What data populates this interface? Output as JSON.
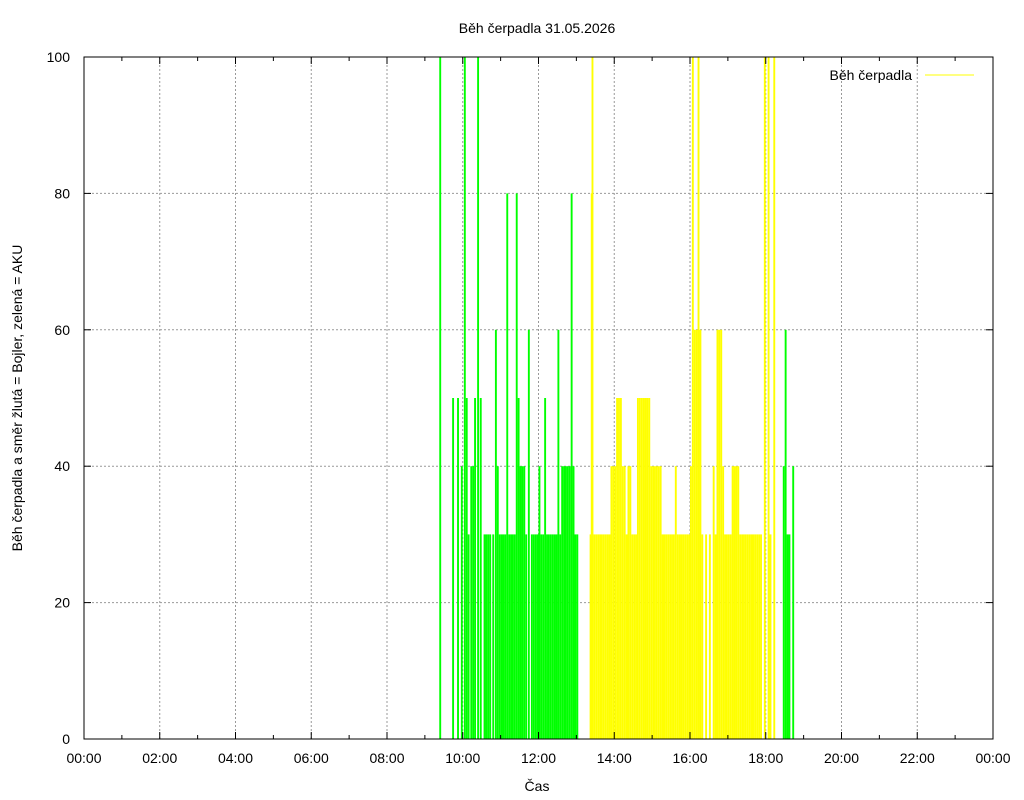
{
  "chart_data": {
    "type": "bar",
    "title": "Běh čerpadla 31.05.2026",
    "xlabel": "Čas",
    "ylabel": "Běh čerpadla a směr žlutá = Bojler, zelená = AKU",
    "xlim_hours": [
      0,
      24
    ],
    "ylim": [
      0,
      100
    ],
    "grid": true,
    "legend_position": "top-right",
    "x_tick_labels": [
      "00:00",
      "02:00",
      "04:00",
      "06:00",
      "08:00",
      "10:00",
      "12:00",
      "14:00",
      "16:00",
      "18:00",
      "20:00",
      "22:00",
      "00:00"
    ],
    "y_tick_labels": [
      "0",
      "20",
      "40",
      "60",
      "80",
      "100"
    ],
    "colors": {
      "green": "#00ff00",
      "yellow": "#ffff00"
    },
    "series": [
      {
        "name": "Běh čerpadla",
        "color": "#ffff00",
        "legend_line_color": "#ffff00"
      }
    ],
    "bars_green": [
      [
        9.38,
        100
      ],
      [
        9.72,
        50
      ],
      [
        9.85,
        50
      ],
      [
        9.95,
        40
      ],
      [
        10.03,
        100
      ],
      [
        10.08,
        50
      ],
      [
        10.13,
        30
      ],
      [
        10.2,
        40
      ],
      [
        10.25,
        40
      ],
      [
        10.3,
        50
      ],
      [
        10.38,
        100
      ],
      [
        10.45,
        50
      ],
      [
        10.55,
        30
      ],
      [
        10.6,
        30
      ],
      [
        10.65,
        30
      ],
      [
        10.7,
        30
      ],
      [
        10.78,
        30
      ],
      [
        10.85,
        60
      ],
      [
        10.9,
        40
      ],
      [
        10.95,
        30
      ],
      [
        11.0,
        30
      ],
      [
        11.05,
        30
      ],
      [
        11.1,
        30
      ],
      [
        11.15,
        80
      ],
      [
        11.2,
        30
      ],
      [
        11.25,
        30
      ],
      [
        11.3,
        30
      ],
      [
        11.35,
        30
      ],
      [
        11.4,
        80
      ],
      [
        11.45,
        50
      ],
      [
        11.5,
        40
      ],
      [
        11.55,
        40
      ],
      [
        11.6,
        40
      ],
      [
        11.65,
        30
      ],
      [
        11.72,
        60
      ],
      [
        11.8,
        30
      ],
      [
        11.85,
        30
      ],
      [
        11.9,
        30
      ],
      [
        11.95,
        30
      ],
      [
        12.0,
        40
      ],
      [
        12.05,
        30
      ],
      [
        12.1,
        30
      ],
      [
        12.15,
        50
      ],
      [
        12.2,
        30
      ],
      [
        12.25,
        30
      ],
      [
        12.3,
        30
      ],
      [
        12.35,
        30
      ],
      [
        12.4,
        30
      ],
      [
        12.45,
        30
      ],
      [
        12.5,
        60
      ],
      [
        12.55,
        30
      ],
      [
        12.6,
        40
      ],
      [
        12.65,
        40
      ],
      [
        12.7,
        40
      ],
      [
        12.75,
        40
      ],
      [
        12.8,
        40
      ],
      [
        12.85,
        80
      ],
      [
        12.9,
        40
      ],
      [
        12.95,
        30
      ],
      [
        13.0,
        30
      ],
      [
        18.45,
        40
      ],
      [
        18.5,
        60
      ],
      [
        18.55,
        30
      ],
      [
        18.6,
        30
      ],
      [
        18.7,
        40
      ]
    ],
    "bars_yellow": [
      [
        13.35,
        30
      ],
      [
        13.38,
        80
      ],
      [
        13.4,
        100
      ],
      [
        13.45,
        30
      ],
      [
        13.5,
        30
      ],
      [
        13.55,
        30
      ],
      [
        13.6,
        30
      ],
      [
        13.65,
        30
      ],
      [
        13.7,
        30
      ],
      [
        13.75,
        30
      ],
      [
        13.8,
        30
      ],
      [
        13.85,
        30
      ],
      [
        13.9,
        40
      ],
      [
        13.95,
        40
      ],
      [
        14.0,
        40
      ],
      [
        14.05,
        50
      ],
      [
        14.1,
        50
      ],
      [
        14.15,
        50
      ],
      [
        14.2,
        40
      ],
      [
        14.25,
        40
      ],
      [
        14.3,
        30
      ],
      [
        14.35,
        40
      ],
      [
        14.4,
        40
      ],
      [
        14.45,
        30
      ],
      [
        14.5,
        30
      ],
      [
        14.55,
        30
      ],
      [
        14.6,
        50
      ],
      [
        14.65,
        50
      ],
      [
        14.7,
        50
      ],
      [
        14.75,
        50
      ],
      [
        14.8,
        50
      ],
      [
        14.85,
        50
      ],
      [
        14.9,
        50
      ],
      [
        14.95,
        40
      ],
      [
        15.0,
        40
      ],
      [
        15.05,
        40
      ],
      [
        15.1,
        40
      ],
      [
        15.15,
        40
      ],
      [
        15.2,
        40
      ],
      [
        15.25,
        30
      ],
      [
        15.3,
        30
      ],
      [
        15.35,
        30
      ],
      [
        15.4,
        30
      ],
      [
        15.45,
        30
      ],
      [
        15.5,
        30
      ],
      [
        15.55,
        30
      ],
      [
        15.6,
        40
      ],
      [
        15.65,
        30
      ],
      [
        15.7,
        30
      ],
      [
        15.75,
        30
      ],
      [
        15.8,
        30
      ],
      [
        15.85,
        30
      ],
      [
        15.9,
        30
      ],
      [
        15.95,
        30
      ],
      [
        16.0,
        40
      ],
      [
        16.05,
        100
      ],
      [
        16.1,
        60
      ],
      [
        16.15,
        60
      ],
      [
        16.2,
        100
      ],
      [
        16.25,
        60
      ],
      [
        16.3,
        30
      ],
      [
        16.4,
        30
      ],
      [
        16.5,
        30
      ],
      [
        16.6,
        40
      ],
      [
        16.65,
        30
      ],
      [
        16.7,
        60
      ],
      [
        16.75,
        60
      ],
      [
        16.8,
        60
      ],
      [
        16.85,
        40
      ],
      [
        16.9,
        30
      ],
      [
        16.95,
        30
      ],
      [
        17.0,
        30
      ],
      [
        17.05,
        30
      ],
      [
        17.1,
        40
      ],
      [
        17.15,
        40
      ],
      [
        17.2,
        40
      ],
      [
        17.25,
        40
      ],
      [
        17.3,
        30
      ],
      [
        17.35,
        30
      ],
      [
        17.4,
        30
      ],
      [
        17.45,
        30
      ],
      [
        17.5,
        30
      ],
      [
        17.55,
        30
      ],
      [
        17.6,
        30
      ],
      [
        17.65,
        30
      ],
      [
        17.7,
        30
      ],
      [
        17.75,
        30
      ],
      [
        17.8,
        30
      ],
      [
        17.85,
        30
      ],
      [
        17.95,
        100
      ],
      [
        18.05,
        100
      ],
      [
        18.1,
        30
      ],
      [
        18.2,
        100
      ]
    ]
  }
}
